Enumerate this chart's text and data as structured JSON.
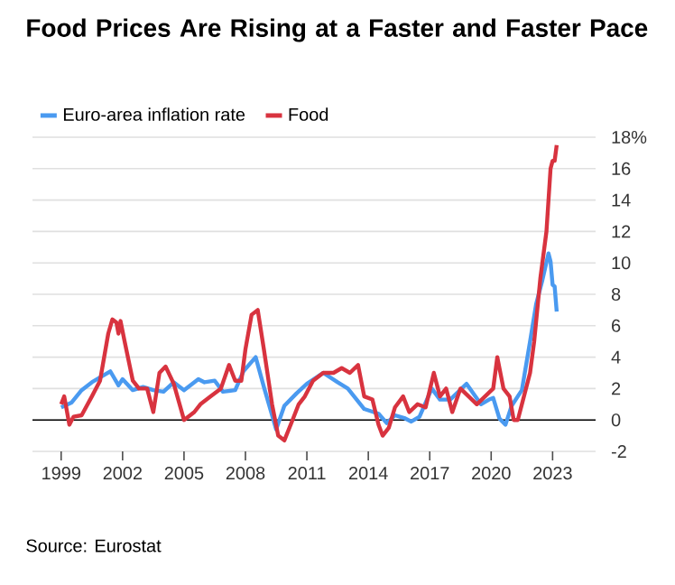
{
  "chart_data": {
    "type": "line",
    "title": "Food Prices Are Rising at a Faster and Faster Pace",
    "annotations": [
      "Source: Eurostat"
    ],
    "series": [
      {
        "name": "Euro-area inflation rate",
        "color": "#4a9af0",
        "x": [
          1999.0,
          1999.5,
          2000.0,
          2000.5,
          2001.4,
          2001.8,
          2002.0,
          2002.5,
          2003.0,
          2003.5,
          2004.0,
          2004.5,
          2005.0,
          2005.7,
          2006.0,
          2006.5,
          2006.9,
          2007.5,
          2007.9,
          2008.5,
          2008.9,
          2009.5,
          2009.9,
          2010.5,
          2011.0,
          2011.8,
          2012.5,
          2013.0,
          2013.8,
          2014.5,
          2014.9,
          2015.3,
          2015.8,
          2016.1,
          2016.5,
          2017.1,
          2017.5,
          2018.0,
          2018.8,
          2019.5,
          2019.9,
          2020.1,
          2020.4,
          2020.7,
          2021.0,
          2021.5,
          2021.9,
          2022.2,
          2022.5,
          2022.8,
          2022.9,
          2023.0,
          2023.1,
          2023.2
        ],
        "values": [
          0.8,
          1.1,
          1.9,
          2.4,
          3.1,
          2.2,
          2.6,
          1.9,
          2.1,
          1.9,
          1.8,
          2.4,
          1.9,
          2.6,
          2.4,
          2.5,
          1.8,
          1.9,
          3.1,
          4.0,
          2.1,
          -0.6,
          0.9,
          1.7,
          2.3,
          3.0,
          2.4,
          2.0,
          0.7,
          0.4,
          -0.2,
          0.3,
          0.1,
          -0.1,
          0.2,
          2.0,
          1.3,
          1.3,
          2.3,
          1.0,
          1.3,
          1.4,
          0.1,
          -0.3,
          0.9,
          1.9,
          5.0,
          7.4,
          8.9,
          10.6,
          10.1,
          8.6,
          8.5,
          6.9
        ]
      },
      {
        "name": "Food",
        "color": "#d8333f",
        "x": [
          1999.0,
          1999.15,
          1999.4,
          1999.6,
          2000.0,
          2000.5,
          2000.9,
          2001.3,
          2001.5,
          2001.7,
          2001.8,
          2001.9,
          2002.1,
          2002.5,
          2002.8,
          2003.2,
          2003.5,
          2003.8,
          2004.1,
          2004.5,
          2005.0,
          2005.5,
          2005.8,
          2006.3,
          2006.8,
          2007.2,
          2007.5,
          2007.8,
          2008.0,
          2008.3,
          2008.6,
          2008.9,
          2009.3,
          2009.6,
          2009.9,
          2010.3,
          2010.6,
          2010.9,
          2011.3,
          2011.8,
          2012.3,
          2012.7,
          2013.1,
          2013.5,
          2013.8,
          2014.2,
          2014.5,
          2014.7,
          2015.0,
          2015.3,
          2015.7,
          2016.0,
          2016.4,
          2016.8,
          2017.2,
          2017.5,
          2017.8,
          2018.1,
          2018.5,
          2018.9,
          2019.3,
          2019.7,
          2020.1,
          2020.3,
          2020.6,
          2020.9,
          2021.1,
          2021.3,
          2021.6,
          2021.9,
          2022.1,
          2022.4,
          2022.7,
          2022.9,
          2023.0,
          2023.1,
          2023.2
        ],
        "values": [
          1.0,
          1.5,
          -0.3,
          0.2,
          0.3,
          1.5,
          2.5,
          5.5,
          6.4,
          6.2,
          5.5,
          6.3,
          5.0,
          2.5,
          2.0,
          2.0,
          0.5,
          3.0,
          3.4,
          2.3,
          0.0,
          0.5,
          1.0,
          1.5,
          2.0,
          3.5,
          2.5,
          2.5,
          4.5,
          6.7,
          7.0,
          4.5,
          1.0,
          -1.0,
          -1.3,
          0.0,
          1.0,
          1.5,
          2.5,
          3.0,
          3.0,
          3.3,
          3.0,
          3.5,
          1.5,
          1.3,
          -0.3,
          -1.0,
          -0.5,
          0.8,
          1.5,
          0.5,
          1.0,
          0.8,
          3.0,
          1.5,
          2.0,
          0.5,
          2.0,
          1.5,
          1.0,
          1.5,
          2.0,
          4.0,
          2.0,
          1.5,
          0.0,
          0.0,
          1.5,
          3.0,
          5.0,
          9.0,
          12.0,
          16.0,
          16.5,
          16.5,
          17.5
        ]
      }
    ],
    "xlim": [
      1997.6,
      2025.1
    ],
    "ylim": [
      -2,
      18
    ],
    "xticks": [
      1999,
      2002,
      2005,
      2008,
      2011,
      2014,
      2017,
      2020,
      2023
    ],
    "yticks": [
      -2,
      0,
      2,
      4,
      6,
      8,
      10,
      12,
      14,
      16,
      {
        "value": 18,
        "label": "18%"
      }
    ],
    "grid": "y",
    "legend": "top left",
    "ref_lines": [
      {
        "axis": "y",
        "value": 0,
        "color": "#000000"
      }
    ]
  }
}
